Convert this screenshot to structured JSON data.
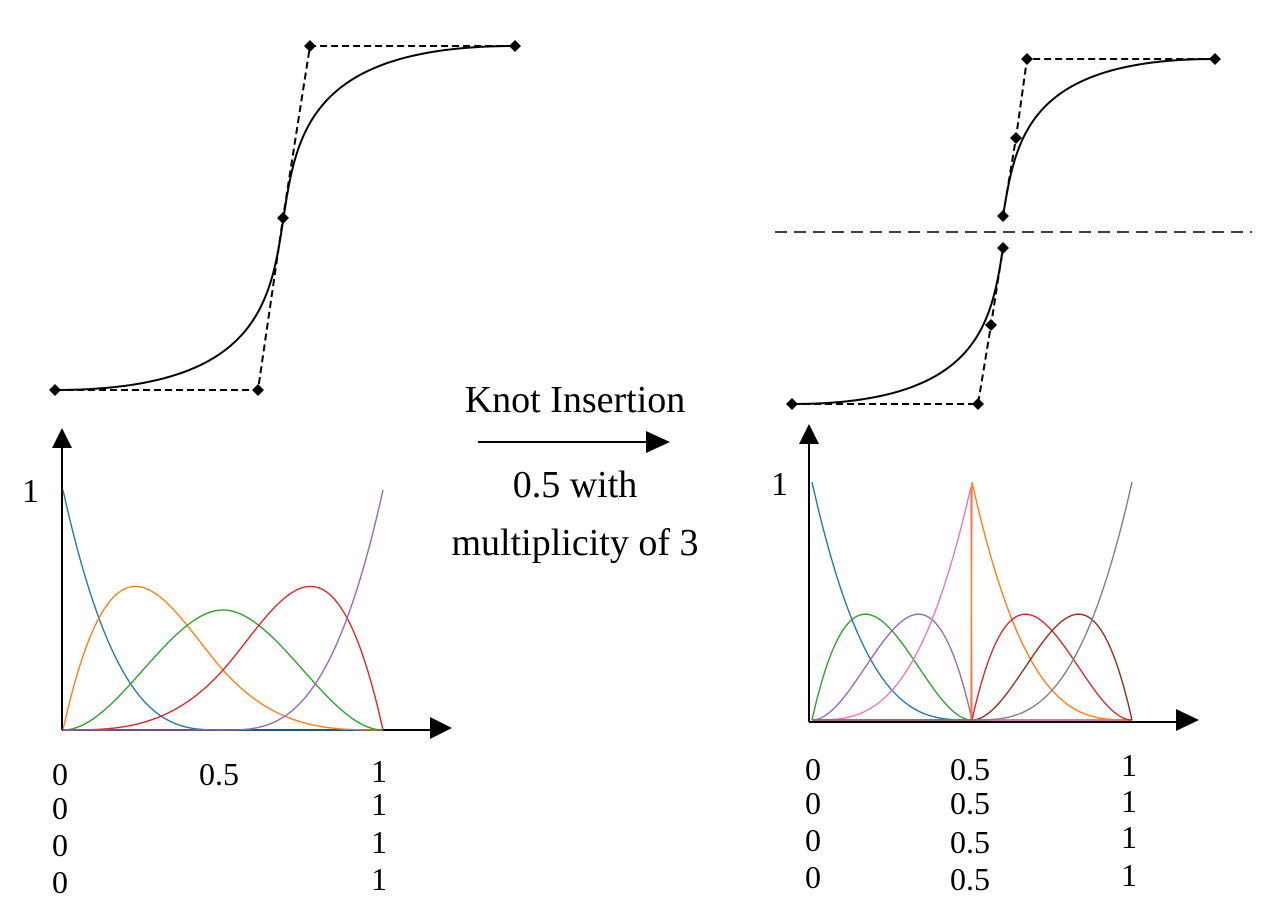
{
  "operation": {
    "title": "Knot Insertion",
    "detail_line1": "0.5 with",
    "detail_line2": "multiplicity of 3"
  },
  "left": {
    "axis_y_label": "1",
    "knot_columns": [
      [
        "0",
        "0",
        "0",
        "0"
      ],
      [
        "0.5"
      ],
      [
        "1",
        "1",
        "1",
        "1"
      ]
    ],
    "knot_vector": [
      0,
      0,
      0,
      0,
      0.5,
      1,
      1,
      1,
      1
    ],
    "degree": 3
  },
  "right": {
    "axis_y_label": "1",
    "knot_columns": [
      [
        "0",
        "0",
        "0",
        "0"
      ],
      [
        "0.5",
        "0.5",
        "0.5",
        "0.5"
      ],
      [
        "1",
        "1",
        "1",
        "1"
      ]
    ],
    "knot_vector": [
      0,
      0,
      0,
      0,
      0.5,
      0.5,
      0.5,
      0.5,
      1,
      1,
      1,
      1
    ],
    "degree": 3
  },
  "colors": {
    "basis": [
      "#1f77b4",
      "#ff7f0e",
      "#2ca02c",
      "#d62728",
      "#9467bd",
      "#e377c2",
      "#7f7f7f",
      "#8c2d19"
    ],
    "ink": "#000000"
  }
}
